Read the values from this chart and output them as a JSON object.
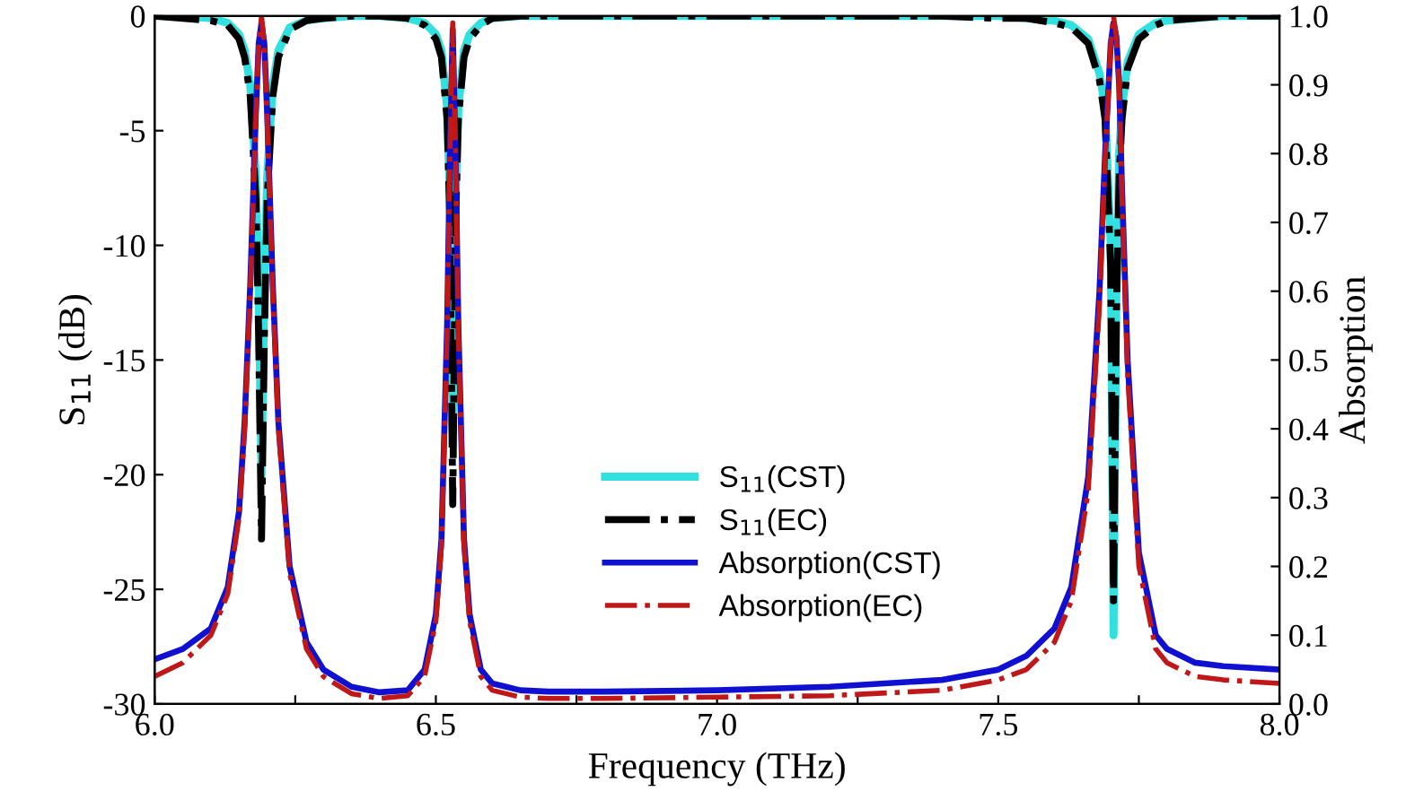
{
  "chart_data": {
    "type": "line",
    "xlabel": "Frequency (THz)",
    "ylabel": "S$_{11}$ (dB)",
    "y2label": "Absorption",
    "x": [
      6.0,
      6.05,
      6.1,
      6.13,
      6.15,
      6.16,
      6.17,
      6.18,
      6.185,
      6.19,
      6.195,
      6.2,
      6.21,
      6.22,
      6.24,
      6.27,
      6.3,
      6.35,
      6.4,
      6.45,
      6.48,
      6.5,
      6.51,
      6.52,
      6.525,
      6.53,
      6.535,
      6.54,
      6.55,
      6.56,
      6.58,
      6.6,
      6.65,
      6.7,
      6.8,
      7.0,
      7.2,
      7.4,
      7.5,
      7.55,
      7.6,
      7.63,
      7.66,
      7.68,
      7.69,
      7.7,
      7.705,
      7.71,
      7.715,
      7.72,
      7.73,
      7.75,
      7.78,
      7.8,
      7.85,
      7.9,
      8.0
    ],
    "series": [
      {
        "name": "S$_{11}$(CST)",
        "color": "#33e0e0",
        "line_style": "solid",
        "values": [
          0,
          0,
          -0.1,
          -0.3,
          -0.8,
          -1.5,
          -3,
          -7,
          -12,
          -20,
          -12,
          -7,
          -3,
          -1.5,
          -0.5,
          -0.2,
          -0.1,
          0,
          0,
          -0.1,
          -0.3,
          -0.8,
          -1.5,
          -4,
          -8,
          -18,
          -8,
          -4,
          -1.5,
          -0.8,
          -0.3,
          -0.1,
          0,
          0,
          0,
          0,
          0,
          0,
          0,
          -0.1,
          -0.2,
          -0.4,
          -1,
          -2.5,
          -4,
          -10,
          -27,
          -12,
          -6,
          -4,
          -2,
          -0.8,
          -0.3,
          -0.2,
          -0.1,
          0,
          0
        ]
      },
      {
        "name": "S$_{11}$(EC)",
        "color": "#000000",
        "line_style": "dashdot",
        "values": [
          0,
          -0.1,
          -0.2,
          -0.4,
          -1,
          -1.8,
          -3.5,
          -8,
          -14,
          -22.8,
          -14,
          -8,
          -3.5,
          -1.8,
          -0.6,
          -0.2,
          -0.1,
          0,
          0,
          -0.1,
          -0.4,
          -1,
          -1.8,
          -4.5,
          -9,
          -21.3,
          -9,
          -4.5,
          -1.8,
          -1,
          -0.4,
          -0.1,
          0,
          0,
          0,
          0,
          0,
          0,
          -0.1,
          -0.1,
          -0.3,
          -0.5,
          -1.2,
          -2.8,
          -4.5,
          -11,
          -25.5,
          -13,
          -7,
          -4.5,
          -2.3,
          -1,
          -0.4,
          -0.2,
          -0.1,
          0,
          0
        ]
      },
      {
        "name": "Absorption(CST)",
        "color": "#1010d0",
        "line_style": "solid",
        "axis": "y2",
        "values": [
          0.065,
          0.08,
          0.11,
          0.17,
          0.28,
          0.41,
          0.61,
          0.86,
          0.96,
          0.99,
          0.96,
          0.86,
          0.61,
          0.41,
          0.2,
          0.09,
          0.05,
          0.025,
          0.017,
          0.02,
          0.05,
          0.13,
          0.24,
          0.55,
          0.8,
          0.98,
          0.8,
          0.55,
          0.24,
          0.13,
          0.05,
          0.03,
          0.02,
          0.018,
          0.018,
          0.02,
          0.025,
          0.035,
          0.05,
          0.07,
          0.11,
          0.17,
          0.33,
          0.6,
          0.8,
          0.96,
          0.99,
          0.97,
          0.9,
          0.75,
          0.5,
          0.22,
          0.1,
          0.08,
          0.06,
          0.055,
          0.05
        ]
      },
      {
        "name": "Absorption(EC)",
        "color": "#c01818",
        "line_style": "dashdot",
        "axis": "y2",
        "values": [
          0.04,
          0.06,
          0.1,
          0.16,
          0.27,
          0.4,
          0.6,
          0.85,
          0.96,
          1.0,
          0.96,
          0.85,
          0.6,
          0.4,
          0.19,
          0.08,
          0.04,
          0.015,
          0.008,
          0.012,
          0.04,
          0.12,
          0.23,
          0.54,
          0.8,
          0.99,
          0.8,
          0.54,
          0.23,
          0.12,
          0.04,
          0.02,
          0.01,
          0.008,
          0.008,
          0.01,
          0.012,
          0.02,
          0.035,
          0.05,
          0.09,
          0.15,
          0.31,
          0.58,
          0.79,
          0.96,
          1.0,
          0.97,
          0.9,
          0.74,
          0.48,
          0.2,
          0.08,
          0.06,
          0.04,
          0.035,
          0.03
        ]
      }
    ],
    "xlim": [
      6.0,
      8.0
    ],
    "xticks": [
      {
        "value": 6.0,
        "label": "6.0"
      },
      {
        "value": 6.25,
        "label": null
      },
      {
        "value": 6.5,
        "label": "6.5"
      },
      {
        "value": 6.75,
        "label": null
      },
      {
        "value": 7.0,
        "label": "7.0"
      },
      {
        "value": 7.25,
        "label": null
      },
      {
        "value": 7.5,
        "label": "7.5"
      },
      {
        "value": 7.75,
        "label": null
      },
      {
        "value": 8.0,
        "label": "8.0"
      }
    ],
    "ylim": [
      -30,
      0
    ],
    "yticks": [
      -30,
      -25,
      -20,
      -15,
      -10,
      -5,
      0
    ],
    "y2lim": [
      0,
      1
    ],
    "y2ticks": [
      {
        "value": 0,
        "label": "0.0"
      },
      {
        "value": 0.1,
        "label": "0.1"
      },
      {
        "value": 0.2,
        "label": "0.2"
      },
      {
        "value": 0.3,
        "label": "0.3"
      },
      {
        "value": 0.4,
        "label": "0.4"
      },
      {
        "value": 0.5,
        "label": "0.5"
      },
      {
        "value": 0.6,
        "label": "0.6"
      },
      {
        "value": 0.7,
        "label": "0.7"
      },
      {
        "value": 0.8,
        "label": "0.8"
      },
      {
        "value": 0.9,
        "label": "0.9"
      },
      {
        "value": 1,
        "label": "1.0"
      }
    ],
    "grid": false,
    "legend": "bottom",
    "marker": "none"
  }
}
